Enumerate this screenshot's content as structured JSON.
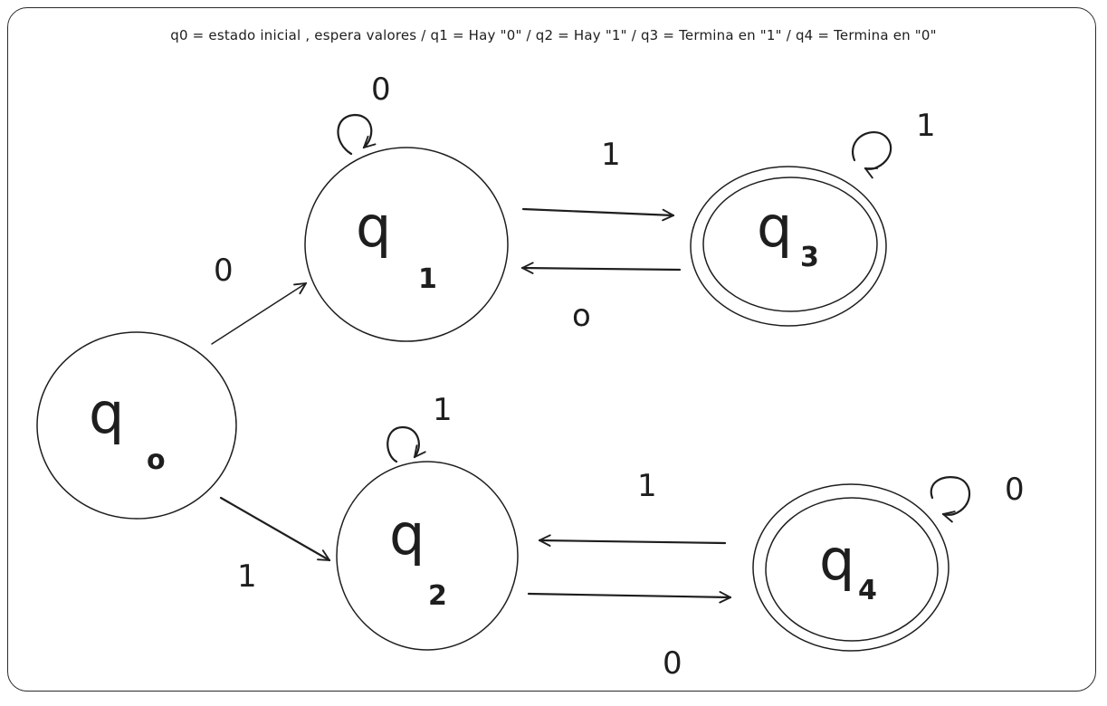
{
  "caption": "q0 = estado inicial , espera valores / q1 = Hay \"0\" / q2 = Hay \"1\" / q3 = Termina en \"1\" / q4 = Termina en  \"0\"",
  "states": [
    {
      "id": "q0",
      "letter": "q",
      "sub": "o",
      "accepting": false
    },
    {
      "id": "q1",
      "letter": "q",
      "sub": "1",
      "accepting": false
    },
    {
      "id": "q2",
      "letter": "q",
      "sub": "2",
      "accepting": false
    },
    {
      "id": "q3",
      "letter": "q",
      "sub": "3",
      "accepting": true
    },
    {
      "id": "q4",
      "letter": "q",
      "sub": "4",
      "accepting": true
    }
  ],
  "transitions": [
    {
      "from": "q0",
      "to": "q1",
      "label": "0"
    },
    {
      "from": "q0",
      "to": "q2",
      "label": "1"
    },
    {
      "from": "q1",
      "to": "q1",
      "label": "0"
    },
    {
      "from": "q1",
      "to": "q3",
      "label": "1"
    },
    {
      "from": "q3",
      "to": "q1",
      "label": "o"
    },
    {
      "from": "q3",
      "to": "q3",
      "label": "1"
    },
    {
      "from": "q2",
      "to": "q2",
      "label": "1"
    },
    {
      "from": "q2",
      "to": "q4",
      "label": "0"
    },
    {
      "from": "q4",
      "to": "q2",
      "label": "1"
    },
    {
      "from": "q4",
      "to": "q4",
      "label": "0"
    }
  ]
}
